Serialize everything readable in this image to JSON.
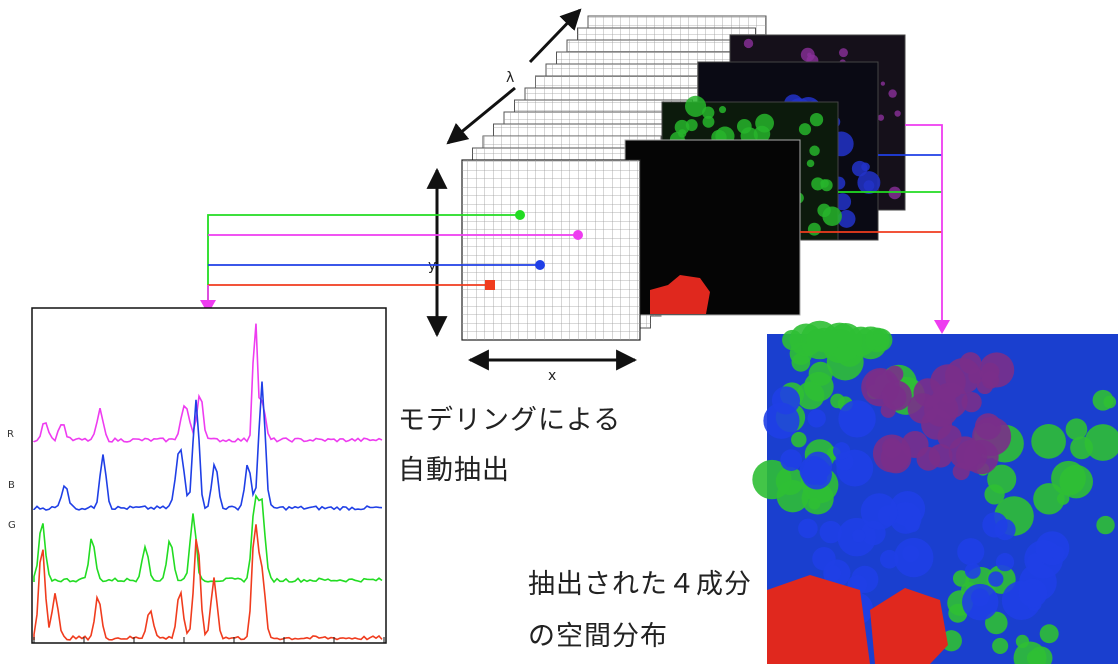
{
  "axes": {
    "x": "x",
    "y": "y",
    "lambda": "λ"
  },
  "caption_model": [
    "モデリングによる",
    "自動抽出"
  ],
  "caption_result": [
    "抽出された４成分",
    "の空間分布"
  ],
  "spectrum_labels": [
    "R",
    "B",
    "G"
  ],
  "colors": {
    "red": "#f03c1e",
    "green": "#22dc22",
    "blue": "#1f3fe6",
    "magenta": "#ee3cf0",
    "grid_line": "#9a9a9a",
    "axis": "#111111"
  }
}
